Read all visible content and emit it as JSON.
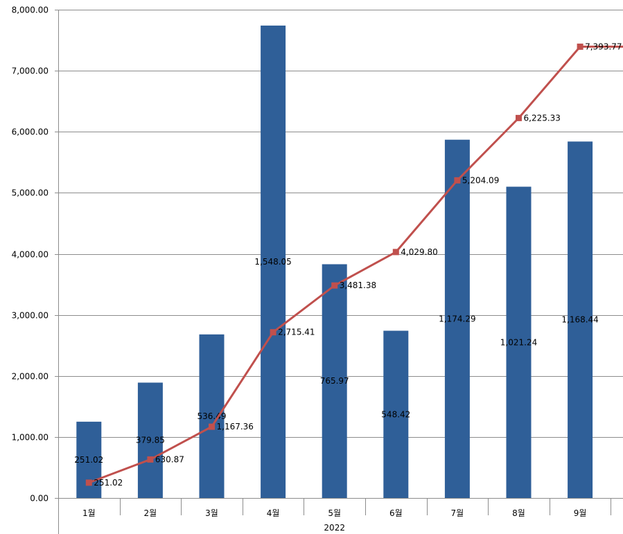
{
  "chart_data": {
    "type": "bar",
    "categories": [
      "1월",
      "2월",
      "3월",
      "4월",
      "5월",
      "6월",
      "7월",
      "8월",
      "9월"
    ],
    "group_label": "2022",
    "series": [
      {
        "type": "bar",
        "color": "#2F5F98",
        "values": [
          1250,
          1890,
          2680,
          7740,
          3830,
          2740,
          5870,
          5100,
          5840
        ],
        "labels": [
          "251.02",
          "379.85",
          "536.49",
          "1,548.05",
          "765.97",
          "548.42",
          "1,174.29",
          "1,021.24",
          "1,168.44"
        ]
      },
      {
        "type": "line",
        "color": "#C0504D",
        "values": [
          251.02,
          630.87,
          1167.36,
          2715.41,
          3481.38,
          4029.8,
          5204.09,
          6225.33,
          7393.77
        ],
        "labels": [
          "251.02",
          "630.87",
          "1,167.36",
          "2,715.41",
          "3,481.38",
          "4,029.80",
          "5,204.09",
          "6,225.33",
          "7,393.77"
        ]
      }
    ],
    "ylim": [
      0,
      8000
    ],
    "yticks": [
      "0.00",
      "1,000.00",
      "2,000.00",
      "3,000.00",
      "4,000.00",
      "5,000.00",
      "6,000.00",
      "7,000.00",
      "8,000.00"
    ],
    "grid": true
  }
}
